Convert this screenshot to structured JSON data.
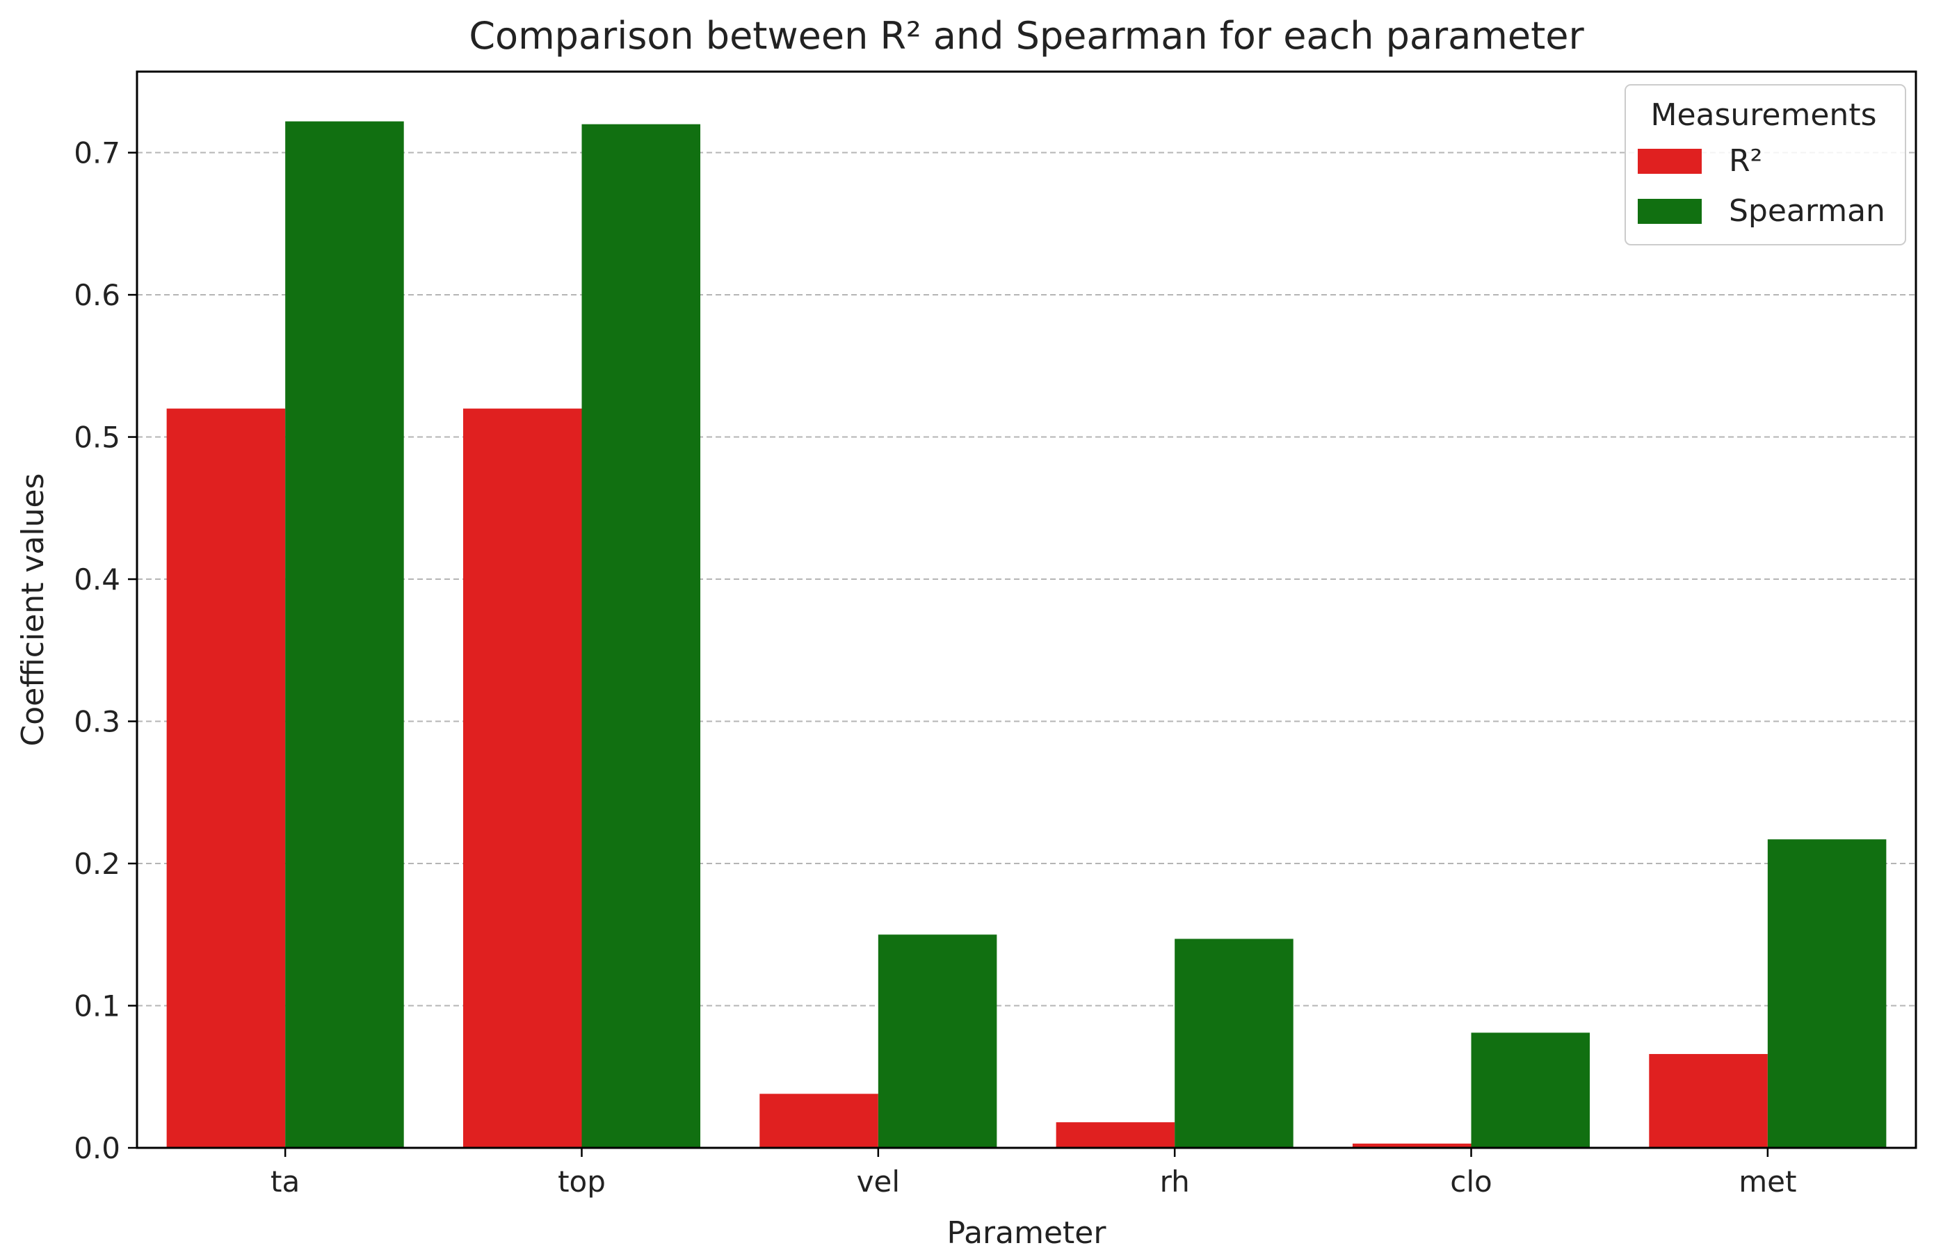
{
  "chart_data": {
    "type": "bar",
    "title": "Comparison between R² and Spearman for each parameter",
    "xlabel": "Parameter",
    "ylabel": "Coefficient values",
    "categories": [
      "ta",
      "top",
      "vel",
      "rh",
      "clo",
      "met"
    ],
    "series": [
      {
        "name": "R²",
        "color": "#e02020",
        "values": [
          0.52,
          0.52,
          0.038,
          0.018,
          0.003,
          0.066
        ]
      },
      {
        "name": "Spearman",
        "color": "#117011",
        "values": [
          0.722,
          0.72,
          0.15,
          0.147,
          0.081,
          0.217
        ]
      }
    ],
    "ylim": [
      0,
      0.757
    ],
    "yticks": [
      "0.0",
      "0.1",
      "0.2",
      "0.3",
      "0.4",
      "0.5",
      "0.6",
      "0.7"
    ],
    "grid": "horizontal-dashed",
    "legend": {
      "title": "Measurements",
      "placement": "top-right"
    }
  }
}
